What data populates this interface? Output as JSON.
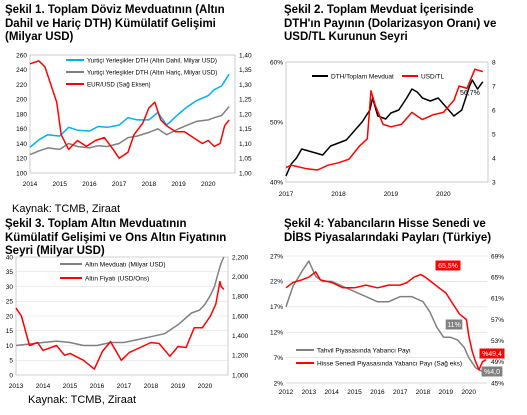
{
  "panels": {
    "p1": {
      "title_l1": "Şekil 1. Toplam Döviz Mevduatının (Altın",
      "title_l2": "Dahil ve Hariç DTH) Kümülatif Gelişimi",
      "title_l3": "(Milyar USD)",
      "source": "Kaynak: TCMB, Ziraat"
    },
    "p2": {
      "title_l1": "Şekil 2. Toplam Mevduat İçerisinde",
      "title_l2": "DTH'ın Payının (Dolarizasyon Oranı) ve",
      "title_l3": "USD/TL Kurunun Seyri"
    },
    "p3": {
      "title_l1": "Şekil 3. Toplam Altın Mevduatının",
      "title_l2": "Kümülatif Gelişimi ve Ons Altın Fiyatının",
      "title_l3": "Seyri (Milyar USD)",
      "source": "Kaynak: TCMB, Ziraat"
    },
    "p4": {
      "title_l1": "Şekil 4: Yabancıların Hisse Senedi ve",
      "title_l2": "DİBS Piyasalarındaki Payları (Türkiye)"
    }
  },
  "chart_data": [
    {
      "id": "c1",
      "type": "line",
      "x_ticks": [
        "2014",
        "2015",
        "2016",
        "2017",
        "2018",
        "2019",
        "2020"
      ],
      "y_left": {
        "ylim": [
          100,
          260
        ],
        "ticks": [
          "100",
          "120",
          "140",
          "160",
          "180",
          "200",
          "220",
          "240",
          "260"
        ]
      },
      "y_right": {
        "ylim": [
          1.0,
          1.4
        ],
        "ticks": [
          "1,00",
          "1,05",
          "1,10",
          "1,15",
          "1,20",
          "1,25",
          "1,30",
          "1,35",
          "1,40"
        ]
      },
      "series": [
        {
          "name": "Yurtiçi Yerleşikler DTH (Altın Dahil, Milyar USD)",
          "color": "#00b0f0",
          "axis": "left",
          "x": [
            2014,
            2014.3,
            2014.6,
            2015,
            2015.3,
            2015.6,
            2016,
            2016.3,
            2016.6,
            2017,
            2017.3,
            2017.6,
            2018,
            2018.3,
            2018.6,
            2019,
            2019.3,
            2019.6,
            2020,
            2020.2,
            2020.45,
            2020.7
          ],
          "values": [
            135,
            145,
            152,
            150,
            162,
            158,
            157,
            163,
            162,
            165,
            175,
            172,
            172,
            182,
            165,
            180,
            190,
            198,
            205,
            213,
            218,
            234
          ]
        },
        {
          "name": "Yurtiçi Yerleşikler DTH (Altın Hariç, Milyar USD)",
          "color": "#808080",
          "axis": "left",
          "x": [
            2014,
            2014.3,
            2014.6,
            2015,
            2015.3,
            2015.6,
            2016,
            2016.3,
            2016.6,
            2017,
            2017.3,
            2017.6,
            2018,
            2018.3,
            2018.6,
            2019,
            2019.3,
            2019.6,
            2020,
            2020.2,
            2020.45,
            2020.7
          ],
          "values": [
            125,
            130,
            134,
            132,
            140,
            136,
            134,
            137,
            136,
            140,
            148,
            150,
            155,
            160,
            152,
            160,
            165,
            170,
            172,
            175,
            178,
            190
          ]
        },
        {
          "name": "EUR/USD (Sağ Eksen)",
          "color": "#ff0000",
          "axis": "right",
          "x": [
            2014,
            2014.3,
            2014.5,
            2014.7,
            2014.9,
            2015.05,
            2015.3,
            2015.6,
            2015.9,
            2016.2,
            2016.5,
            2016.8,
            2017,
            2017.3,
            2017.5,
            2017.8,
            2018,
            2018.2,
            2018.4,
            2018.6,
            2018.9,
            2019.2,
            2019.5,
            2019.8,
            2020,
            2020.2,
            2020.4,
            2020.55,
            2020.7
          ],
          "values": [
            1.37,
            1.38,
            1.36,
            1.3,
            1.24,
            1.13,
            1.08,
            1.11,
            1.09,
            1.11,
            1.12,
            1.08,
            1.05,
            1.07,
            1.13,
            1.17,
            1.22,
            1.24,
            1.18,
            1.16,
            1.14,
            1.14,
            1.12,
            1.1,
            1.11,
            1.09,
            1.1,
            1.16,
            1.18
          ]
        }
      ]
    },
    {
      "id": "c2",
      "type": "line",
      "x_ticks": [
        "2017",
        "2018",
        "2019",
        "2020"
      ],
      "y_left": {
        "ylim": [
          40,
          60
        ],
        "ticks": [
          "40%",
          "50%",
          "60%"
        ]
      },
      "y_right": {
        "ylim": [
          3,
          8
        ],
        "ticks": [
          "3",
          "4",
          "5",
          "6",
          "7",
          "8"
        ]
      },
      "annotation": "56,7%",
      "series": [
        {
          "name": "DTH/Toplam Mevduat",
          "color": "#000000",
          "axis": "left",
          "x": [
            2017,
            2017.1,
            2017.2,
            2017.3,
            2017.5,
            2017.7,
            2017.85,
            2018,
            2018.15,
            2018.3,
            2018.45,
            2018.6,
            2018.65,
            2018.75,
            2018.9,
            2019,
            2019.15,
            2019.3,
            2019.4,
            2019.5,
            2019.6,
            2019.75,
            2019.9,
            2020,
            2020.2,
            2020.35,
            2020.5,
            2020.55,
            2020.65,
            2020.75
          ],
          "values": [
            41,
            43,
            44,
            45.5,
            45,
            44.5,
            46,
            46.5,
            47,
            48.5,
            50,
            52,
            54,
            51,
            50.5,
            51.5,
            52,
            54,
            55.5,
            55,
            54,
            53.5,
            54,
            53,
            51,
            52,
            56,
            57,
            55.5,
            56.7
          ]
        },
        {
          "name": "USD/TL",
          "color": "#ff0000",
          "axis": "right",
          "x": [
            2017,
            2017.1,
            2017.2,
            2017.4,
            2017.6,
            2017.8,
            2018,
            2018.2,
            2018.4,
            2018.55,
            2018.62,
            2018.7,
            2018.85,
            2019,
            2019.2,
            2019.4,
            2019.6,
            2019.8,
            2020,
            2020.2,
            2020.3,
            2020.45,
            2020.6,
            2020.75
          ],
          "values": [
            3.6,
            3.7,
            3.65,
            3.55,
            3.5,
            3.7,
            3.8,
            3.95,
            4.5,
            4.8,
            6.8,
            6.2,
            5.4,
            5.3,
            5.4,
            5.9,
            5.6,
            5.8,
            5.9,
            6.4,
            7.0,
            6.9,
            7.7,
            7.6
          ]
        }
      ]
    },
    {
      "id": "c3",
      "type": "line",
      "x_ticks": [
        "2013",
        "2014",
        "2015",
        "2016",
        "2017",
        "2018",
        "2019",
        "2020"
      ],
      "y_left": {
        "ylim": [
          0,
          40
        ],
        "ticks": [
          "0",
          "5",
          "10",
          "15",
          "20",
          "25",
          "30",
          "35",
          "40"
        ]
      },
      "y_right": {
        "ylim": [
          1000,
          2200
        ],
        "ticks": [
          "1,000",
          "1,200",
          "1,400",
          "1,600",
          "1,800",
          "2,000",
          "2,200"
        ]
      },
      "series": [
        {
          "name": "Altın Mevduatı (Milyar USD)",
          "color": "#808080",
          "axis": "left",
          "x": [
            2013,
            2013.5,
            2014,
            2014.5,
            2015,
            2015.5,
            2016,
            2016.5,
            2017,
            2017.5,
            2018,
            2018.5,
            2019,
            2019.5,
            2019.8,
            2020,
            2020.2,
            2020.35,
            2020.5,
            2020.6,
            2020.7
          ],
          "values": [
            10,
            10.5,
            11,
            11.5,
            11,
            10,
            10,
            11,
            11,
            12,
            13,
            14,
            17,
            21,
            22,
            24,
            27,
            30,
            35,
            38,
            40
          ]
        },
        {
          "name": "Altın Fiyatı (USD/Ons)",
          "color": "#ff0000",
          "axis": "right",
          "x": [
            2013,
            2013.2,
            2013.5,
            2013.8,
            2014,
            2014.5,
            2014.8,
            2015,
            2015.5,
            2015.9,
            2016.2,
            2016.5,
            2016.9,
            2017.2,
            2017.6,
            2018,
            2018.3,
            2018.7,
            2019,
            2019.3,
            2019.6,
            2019.9,
            2020,
            2020.2,
            2020.4,
            2020.55,
            2020.6,
            2020.7
          ],
          "values": [
            1680,
            1600,
            1300,
            1330,
            1250,
            1300,
            1200,
            1220,
            1150,
            1060,
            1240,
            1340,
            1150,
            1230,
            1280,
            1330,
            1320,
            1190,
            1290,
            1280,
            1480,
            1480,
            1520,
            1600,
            1720,
            1950,
            1900,
            1870
          ]
        }
      ]
    },
    {
      "id": "c4",
      "type": "line",
      "x_ticks": [
        "2012",
        "2013",
        "2014",
        "2015",
        "2016",
        "2017",
        "2018",
        "2019",
        "2020"
      ],
      "y_left": {
        "ylim": [
          2,
          27
        ],
        "ticks": [
          "2%",
          "7%",
          "12%",
          "17%",
          "22%",
          "27%"
        ]
      },
      "y_right": {
        "ylim": [
          45,
          69
        ],
        "ticks": [
          "45%",
          "49%",
          "53%",
          "57%",
          "61%",
          "65%",
          "69%"
        ]
      },
      "annotations": [
        "65,5%",
        "11%",
        "%49,4",
        "%4,0"
      ],
      "series": [
        {
          "name": "Tahvil Piyasasında Yabancı Payı",
          "color": "#808080",
          "axis": "left",
          "x": [
            2012,
            2012.3,
            2012.7,
            2013,
            2013.3,
            2013.6,
            2014,
            2014.5,
            2015,
            2015.5,
            2016,
            2016.5,
            2017,
            2017.5,
            2018,
            2018.3,
            2018.6,
            2018.9,
            2019.2,
            2019.5,
            2019.8,
            2020,
            2020.15,
            2020.3,
            2020.5,
            2020.7
          ],
          "values": [
            17,
            21,
            24,
            26,
            23,
            22,
            22,
            21,
            20,
            19,
            18,
            18,
            19,
            19,
            18,
            16,
            13,
            11,
            11,
            10.5,
            9,
            7,
            6,
            5,
            4.5,
            4.0
          ]
        },
        {
          "name": "Hisse Senedi Piyasasında Yabancı Payı (Sağ eks)",
          "color": "#ff0000",
          "axis": "right",
          "x": [
            2012,
            2012.3,
            2012.7,
            2013,
            2013.3,
            2013.5,
            2014,
            2014.5,
            2015,
            2015.5,
            2016,
            2016.5,
            2017,
            2017.3,
            2017.6,
            2017.9,
            2018.1,
            2018.4,
            2018.7,
            2019,
            2019.3,
            2019.6,
            2019.9,
            2020,
            2020.15,
            2020.3,
            2020.45,
            2020.6,
            2020.75
          ],
          "values": [
            63,
            64,
            64.5,
            65,
            66,
            64.5,
            64,
            63,
            63,
            63.5,
            63,
            63.5,
            63.5,
            64,
            65,
            65.5,
            65,
            64,
            63,
            62,
            60,
            58,
            57,
            54,
            51,
            49,
            47.5,
            49,
            49.4
          ]
        }
      ]
    }
  ]
}
